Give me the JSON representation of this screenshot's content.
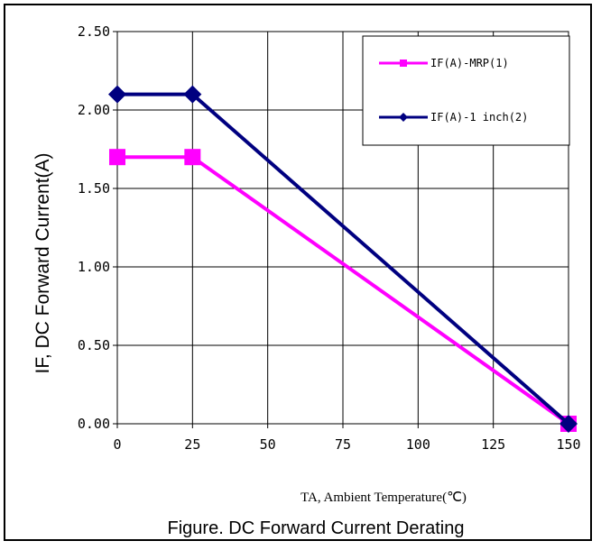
{
  "chart_data": {
    "type": "line",
    "caption": "Figure. DC Forward Current Derating",
    "xlabel": "TA, Ambient Temperature(℃)",
    "ylabel": "IF, DC Forward Current(A)",
    "xlim": [
      0,
      150
    ],
    "ylim": [
      0,
      2.5
    ],
    "x_ticks": [
      0,
      25,
      50,
      75,
      100,
      125,
      150
    ],
    "y_ticks": [
      "0.00",
      "0.50",
      "1.00",
      "1.50",
      "2.00",
      "2.50"
    ],
    "grid": true,
    "legend_position": "top-right",
    "series": [
      {
        "name": "IF(A)-MRP(1)",
        "color": "#ff00ff",
        "marker": "square",
        "points": [
          [
            0,
            1.7
          ],
          [
            25,
            1.7
          ],
          [
            150,
            0
          ]
        ]
      },
      {
        "name": "IF(A)-1 inch(2)",
        "color": "#000080",
        "marker": "diamond",
        "points": [
          [
            0,
            2.1
          ],
          [
            25,
            2.1
          ],
          [
            150,
            0
          ]
        ]
      }
    ]
  }
}
